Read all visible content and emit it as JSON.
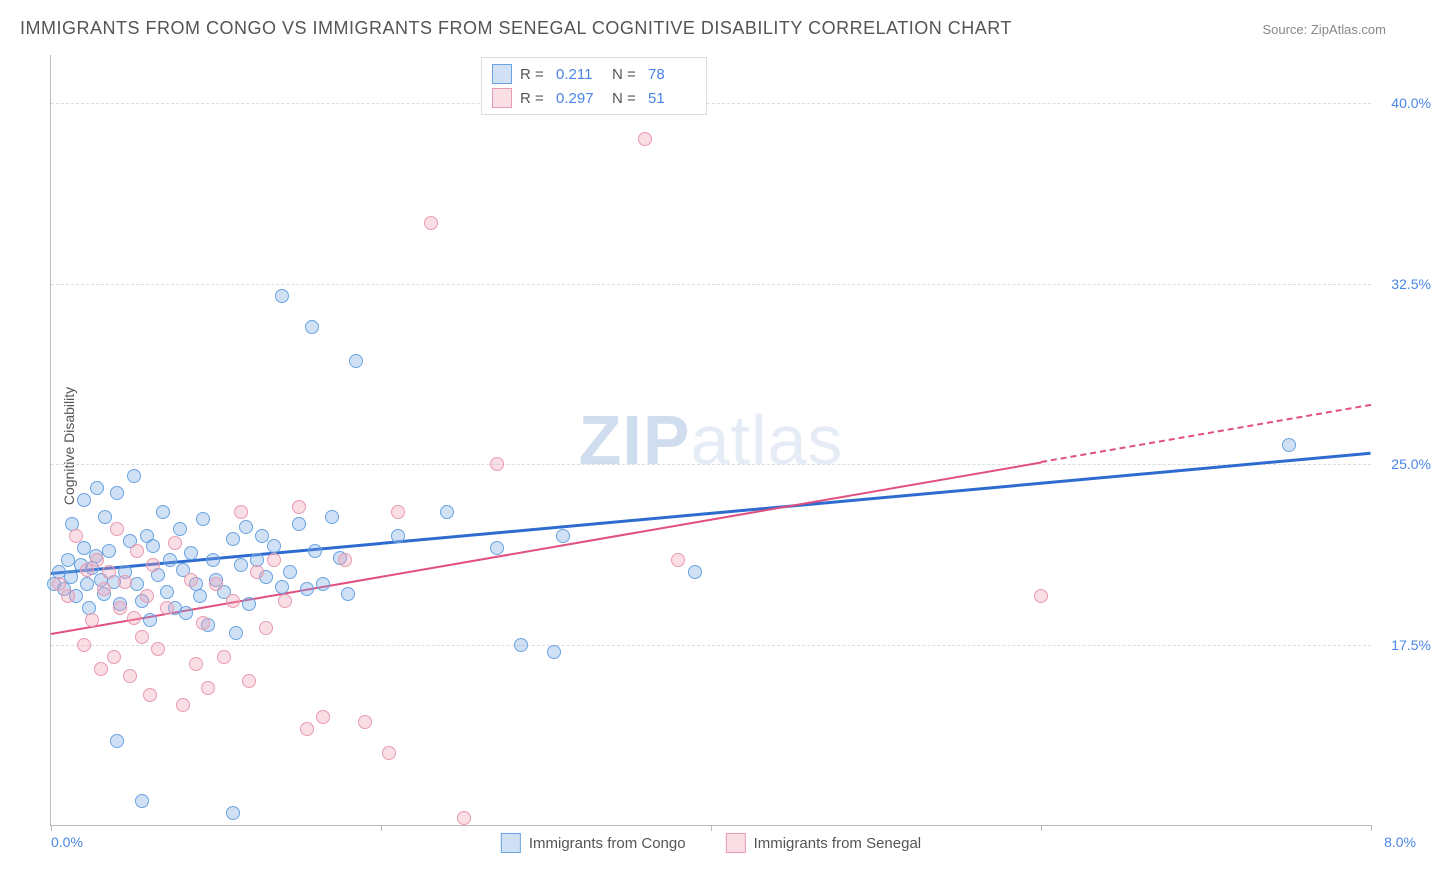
{
  "title": "IMMIGRANTS FROM CONGO VS IMMIGRANTS FROM SENEGAL COGNITIVE DISABILITY CORRELATION CHART",
  "source_label": "Source: ",
  "source_name": "ZipAtlas.com",
  "ylabel": "Cognitive Disability",
  "watermark_a": "ZIP",
  "watermark_b": "atlas",
  "chart": {
    "type": "scatter",
    "x_min": 0.0,
    "x_max": 8.0,
    "y_min": 10.0,
    "y_max": 42.0,
    "x_tick_min_label": "0.0%",
    "x_tick_max_label": "8.0%",
    "x_tick_positions": [
      0.0,
      2.0,
      4.0,
      6.0,
      8.0
    ],
    "y_ticks": [
      17.5,
      25.0,
      32.5,
      40.0
    ],
    "y_tick_labels": [
      "17.5%",
      "25.0%",
      "32.5%",
      "40.0%"
    ],
    "grid_color": "#dddddd",
    "axis_color": "#bbbbbb",
    "background_color": "#ffffff",
    "tick_label_color": "#4a86e8",
    "marker_radius": 7,
    "marker_border_width": 1.5,
    "series": [
      {
        "id": "congo",
        "label": "Immigrants from Congo",
        "fill": "rgba(120,170,230,0.35)",
        "stroke": "#6aa3e0",
        "trend_color": "#2e6bd0",
        "trend_width": 2.5,
        "r_value": "0.211",
        "n_value": "78",
        "trend": {
          "x1": 0.0,
          "y1": 20.5,
          "x2": 8.0,
          "y2": 25.5
        },
        "trend_solid_until_x": 8.0,
        "points": [
          [
            0.02,
            20.0
          ],
          [
            0.05,
            20.5
          ],
          [
            0.08,
            19.8
          ],
          [
            0.1,
            21.0
          ],
          [
            0.12,
            20.3
          ],
          [
            0.13,
            22.5
          ],
          [
            0.15,
            19.5
          ],
          [
            0.18,
            20.8
          ],
          [
            0.2,
            21.5
          ],
          [
            0.2,
            23.5
          ],
          [
            0.22,
            20.0
          ],
          [
            0.23,
            19.0
          ],
          [
            0.25,
            20.7
          ],
          [
            0.27,
            21.2
          ],
          [
            0.28,
            24.0
          ],
          [
            0.3,
            20.2
          ],
          [
            0.32,
            19.6
          ],
          [
            0.33,
            22.8
          ],
          [
            0.35,
            21.4
          ],
          [
            0.38,
            20.1
          ],
          [
            0.4,
            23.8
          ],
          [
            0.4,
            13.5
          ],
          [
            0.42,
            19.2
          ],
          [
            0.45,
            20.5
          ],
          [
            0.48,
            21.8
          ],
          [
            0.5,
            24.5
          ],
          [
            0.52,
            20.0
          ],
          [
            0.55,
            19.3
          ],
          [
            0.55,
            11.0
          ],
          [
            0.58,
            22.0
          ],
          [
            0.6,
            18.5
          ],
          [
            0.62,
            21.6
          ],
          [
            0.65,
            20.4
          ],
          [
            0.68,
            23.0
          ],
          [
            0.7,
            19.7
          ],
          [
            0.72,
            21.0
          ],
          [
            0.75,
            19.0
          ],
          [
            0.78,
            22.3
          ],
          [
            0.8,
            20.6
          ],
          [
            0.82,
            18.8
          ],
          [
            0.85,
            21.3
          ],
          [
            0.88,
            20.0
          ],
          [
            0.9,
            19.5
          ],
          [
            0.92,
            22.7
          ],
          [
            0.95,
            18.3
          ],
          [
            0.98,
            21.0
          ],
          [
            1.0,
            20.2
          ],
          [
            1.05,
            19.7
          ],
          [
            1.1,
            21.9
          ],
          [
            1.12,
            18.0
          ],
          [
            1.15,
            20.8
          ],
          [
            1.18,
            22.4
          ],
          [
            1.2,
            19.2
          ],
          [
            1.25,
            21.0
          ],
          [
            1.28,
            22.0
          ],
          [
            1.3,
            20.3
          ],
          [
            1.35,
            21.6
          ],
          [
            1.1,
            10.5
          ],
          [
            1.4,
            19.9
          ],
          [
            1.4,
            32.0
          ],
          [
            1.45,
            20.5
          ],
          [
            1.5,
            22.5
          ],
          [
            1.55,
            19.8
          ],
          [
            1.58,
            30.7
          ],
          [
            1.6,
            21.4
          ],
          [
            1.65,
            20.0
          ],
          [
            1.7,
            22.8
          ],
          [
            1.75,
            21.1
          ],
          [
            1.8,
            19.6
          ],
          [
            1.85,
            29.3
          ],
          [
            2.1,
            22.0
          ],
          [
            2.4,
            23.0
          ],
          [
            2.7,
            21.5
          ],
          [
            2.85,
            17.5
          ],
          [
            3.05,
            17.2
          ],
          [
            3.1,
            22.0
          ],
          [
            3.9,
            20.5
          ],
          [
            7.5,
            25.8
          ]
        ]
      },
      {
        "id": "senegal",
        "label": "Immigrants from Senegal",
        "fill": "rgba(240,160,180,0.35)",
        "stroke": "#e89bb0",
        "trend_color": "#e05080",
        "trend_width": 2,
        "r_value": "0.297",
        "n_value": "51",
        "trend": {
          "x1": 0.0,
          "y1": 18.0,
          "x2": 8.0,
          "y2": 27.5
        },
        "trend_solid_until_x": 6.0,
        "points": [
          [
            0.05,
            20.0
          ],
          [
            0.1,
            19.5
          ],
          [
            0.15,
            22.0
          ],
          [
            0.2,
            17.5
          ],
          [
            0.22,
            20.6
          ],
          [
            0.25,
            18.5
          ],
          [
            0.28,
            21.0
          ],
          [
            0.3,
            16.5
          ],
          [
            0.32,
            19.8
          ],
          [
            0.35,
            20.5
          ],
          [
            0.38,
            17.0
          ],
          [
            0.4,
            22.3
          ],
          [
            0.42,
            19.0
          ],
          [
            0.45,
            20.1
          ],
          [
            0.48,
            16.2
          ],
          [
            0.5,
            18.6
          ],
          [
            0.52,
            21.4
          ],
          [
            0.55,
            17.8
          ],
          [
            0.58,
            19.5
          ],
          [
            0.6,
            15.4
          ],
          [
            0.62,
            20.8
          ],
          [
            0.65,
            17.3
          ],
          [
            0.7,
            19.0
          ],
          [
            0.75,
            21.7
          ],
          [
            0.8,
            15.0
          ],
          [
            0.85,
            20.2
          ],
          [
            0.88,
            16.7
          ],
          [
            0.92,
            18.4
          ],
          [
            0.95,
            15.7
          ],
          [
            1.0,
            20.0
          ],
          [
            1.05,
            17.0
          ],
          [
            1.1,
            19.3
          ],
          [
            1.15,
            23.0
          ],
          [
            1.2,
            16.0
          ],
          [
            1.25,
            20.5
          ],
          [
            1.3,
            18.2
          ],
          [
            1.35,
            21.0
          ],
          [
            1.42,
            19.3
          ],
          [
            1.5,
            23.2
          ],
          [
            1.55,
            14.0
          ],
          [
            1.65,
            14.5
          ],
          [
            1.78,
            21.0
          ],
          [
            1.9,
            14.3
          ],
          [
            2.05,
            13.0
          ],
          [
            2.1,
            23.0
          ],
          [
            2.3,
            35.0
          ],
          [
            2.5,
            10.3
          ],
          [
            2.7,
            25.0
          ],
          [
            3.6,
            38.5
          ],
          [
            3.8,
            21.0
          ],
          [
            6.0,
            19.5
          ]
        ]
      }
    ]
  },
  "legend_top": {
    "r_label": "R  =",
    "n_label": "N  ="
  }
}
